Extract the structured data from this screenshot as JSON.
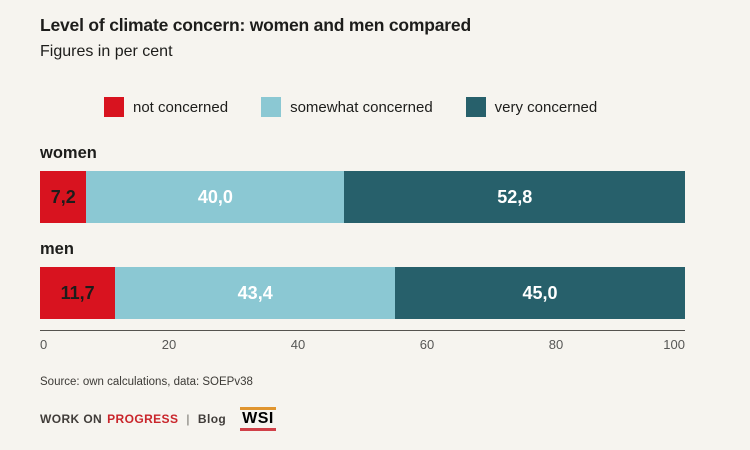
{
  "page": {
    "background_color": "#f6f4ef"
  },
  "header": {
    "title": "Level of climate concern: women and men compared",
    "subtitle": "Figures in per cent"
  },
  "legend": {
    "items": [
      {
        "label": "not concerned",
        "color": "#d8131f"
      },
      {
        "label": "somewhat concerned",
        "color": "#8bc8d3"
      },
      {
        "label": "very concerned",
        "color": "#27606b"
      }
    ]
  },
  "chart_data": {
    "type": "bar",
    "orientation": "horizontal",
    "stacked": true,
    "title": "Level of climate concern: women and men compared",
    "subtitle": "Figures in per cent",
    "unit": "per cent",
    "categories": [
      "women",
      "men"
    ],
    "series": [
      {
        "name": "not concerned",
        "color": "#d8131f",
        "text_color": "#1d1d1b",
        "values": [
          7.2,
          11.7
        ]
      },
      {
        "name": "somewhat concerned",
        "color": "#8bc8d3",
        "text_color": "#ffffff",
        "values": [
          40.0,
          43.4
        ]
      },
      {
        "name": "very concerned",
        "color": "#27606b",
        "text_color": "#ffffff",
        "values": [
          52.8,
          45.0
        ]
      }
    ],
    "value_labels": [
      [
        "7,2",
        "40,0",
        "52,8"
      ],
      [
        "11,7",
        "43,4",
        "45,0"
      ]
    ],
    "xlim": [
      0,
      100
    ],
    "x_ticks": [
      "0",
      "20",
      "40",
      "60",
      "80",
      "100"
    ],
    "grid": false,
    "legend_position": "top"
  },
  "footer": {
    "source": "Source: own calculations, data: SOEPv38",
    "brand": {
      "work_on": "WORK ON",
      "progress": "PROGRESS",
      "separator": "|",
      "blog": "Blog",
      "wsi": "WSI"
    },
    "colors": {
      "progress_red": "#c9252b",
      "wsi_top_line": "#e0952f",
      "wsi_bottom_line": "#d04048"
    }
  }
}
